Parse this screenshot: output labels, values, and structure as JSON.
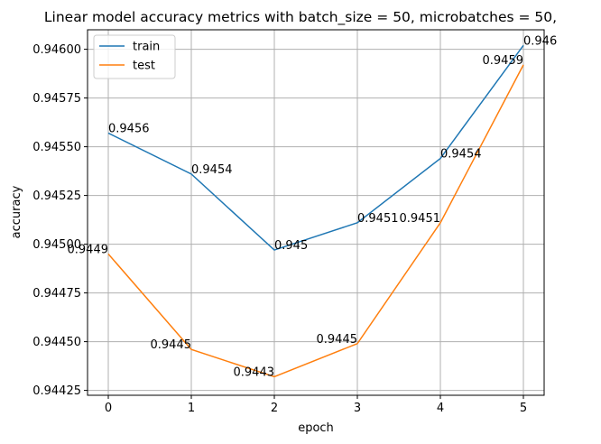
{
  "chart_data": {
    "type": "line",
    "title": "Linear model accuracy metrics with batch_size = 50, microbatches = 50,",
    "xlabel": "epoch",
    "ylabel": "accuracy",
    "x": [
      0,
      1,
      2,
      3,
      4,
      5
    ],
    "xlim": [
      -0.25,
      5.25
    ],
    "ylim": [
      0.944225,
      0.9461
    ],
    "xticks": [
      "0",
      "1",
      "2",
      "3",
      "4",
      "5"
    ],
    "yticks": [
      "0.94425",
      "0.94450",
      "0.94475",
      "0.94500",
      "0.94525",
      "0.94550",
      "0.94575",
      "0.94600"
    ],
    "grid": true,
    "legend_position": "upper-left",
    "series": [
      {
        "name": "train",
        "color": "#1f77b4",
        "values": [
          0.94557,
          0.94536,
          0.94497,
          0.94511,
          0.94544,
          0.94602
        ],
        "labels": [
          "0.9456",
          "0.9454",
          "0.945",
          "0.9451",
          "0.9454",
          "0.946"
        ]
      },
      {
        "name": "test",
        "color": "#ff7f0e",
        "values": [
          0.94495,
          0.94446,
          0.94432,
          0.94449,
          0.94511,
          0.94592
        ],
        "labels": [
          "0.9449",
          "0.9445",
          "0.9443",
          "0.9445",
          "0.9451",
          "0.9459"
        ]
      }
    ]
  }
}
